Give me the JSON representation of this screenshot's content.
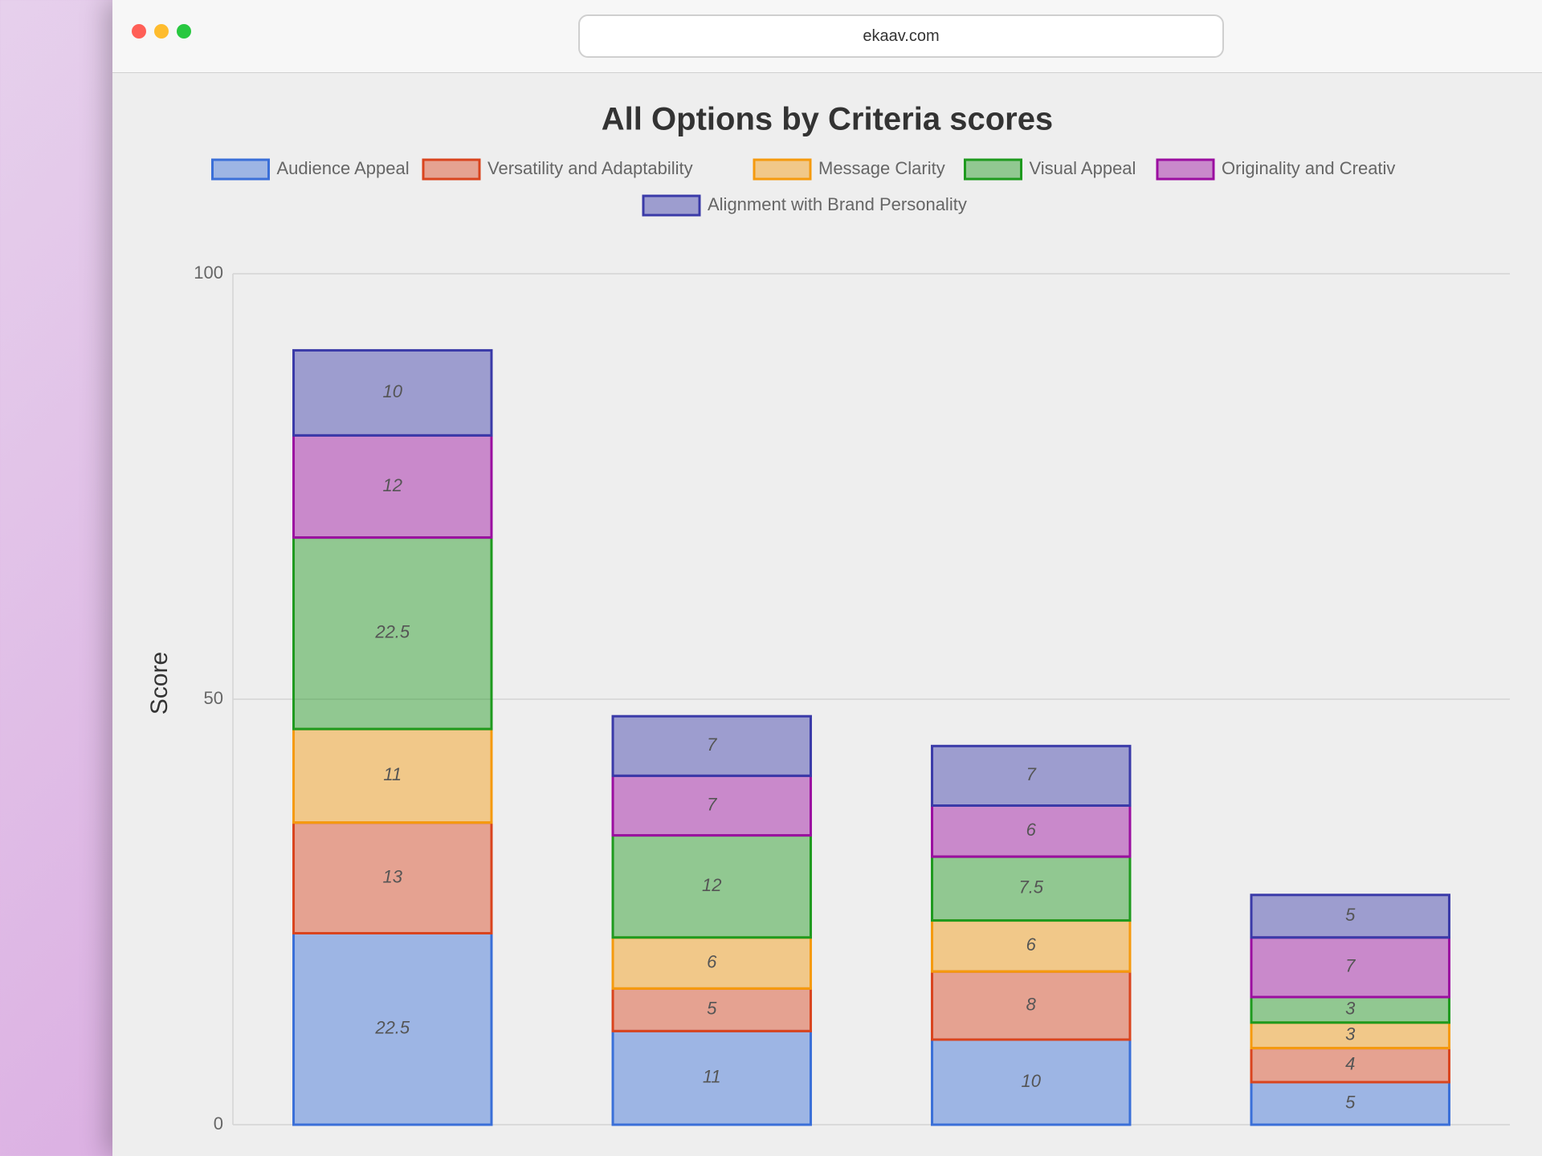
{
  "browser": {
    "url": "ekaav.com"
  },
  "chart_data": {
    "type": "stacked_bar",
    "title": "All Options by Criteria scores",
    "y_label": "Score",
    "categories": [
      null,
      null,
      null,
      null
    ],
    "ylim": [
      0,
      100
    ],
    "yticks": [
      0,
      50,
      100
    ],
    "grid": true,
    "legend": "top",
    "series": [
      {
        "name": "Audience Appeal",
        "color": "#3a6fd8",
        "values": [
          22.5,
          11,
          10,
          5
        ]
      },
      {
        "name": "Versatility and Adaptability",
        "color": "#d9441e",
        "values": [
          13,
          5,
          8,
          4
        ]
      },
      {
        "name": "Message Clarity",
        "color": "#f59a0e",
        "values": [
          11,
          6,
          6,
          3
        ]
      },
      {
        "name": "Visual Appeal",
        "color": "#1e9a1e",
        "values": [
          22.5,
          12,
          7.5,
          3
        ]
      },
      {
        "name": "Originality and Creativ",
        "color": "#9b0ea0",
        "values": [
          12,
          7,
          6,
          7
        ]
      },
      {
        "name": "Alignment with Brand Personality",
        "color": "#3a3aa8",
        "values": [
          10,
          7,
          7,
          5
        ]
      }
    ]
  }
}
